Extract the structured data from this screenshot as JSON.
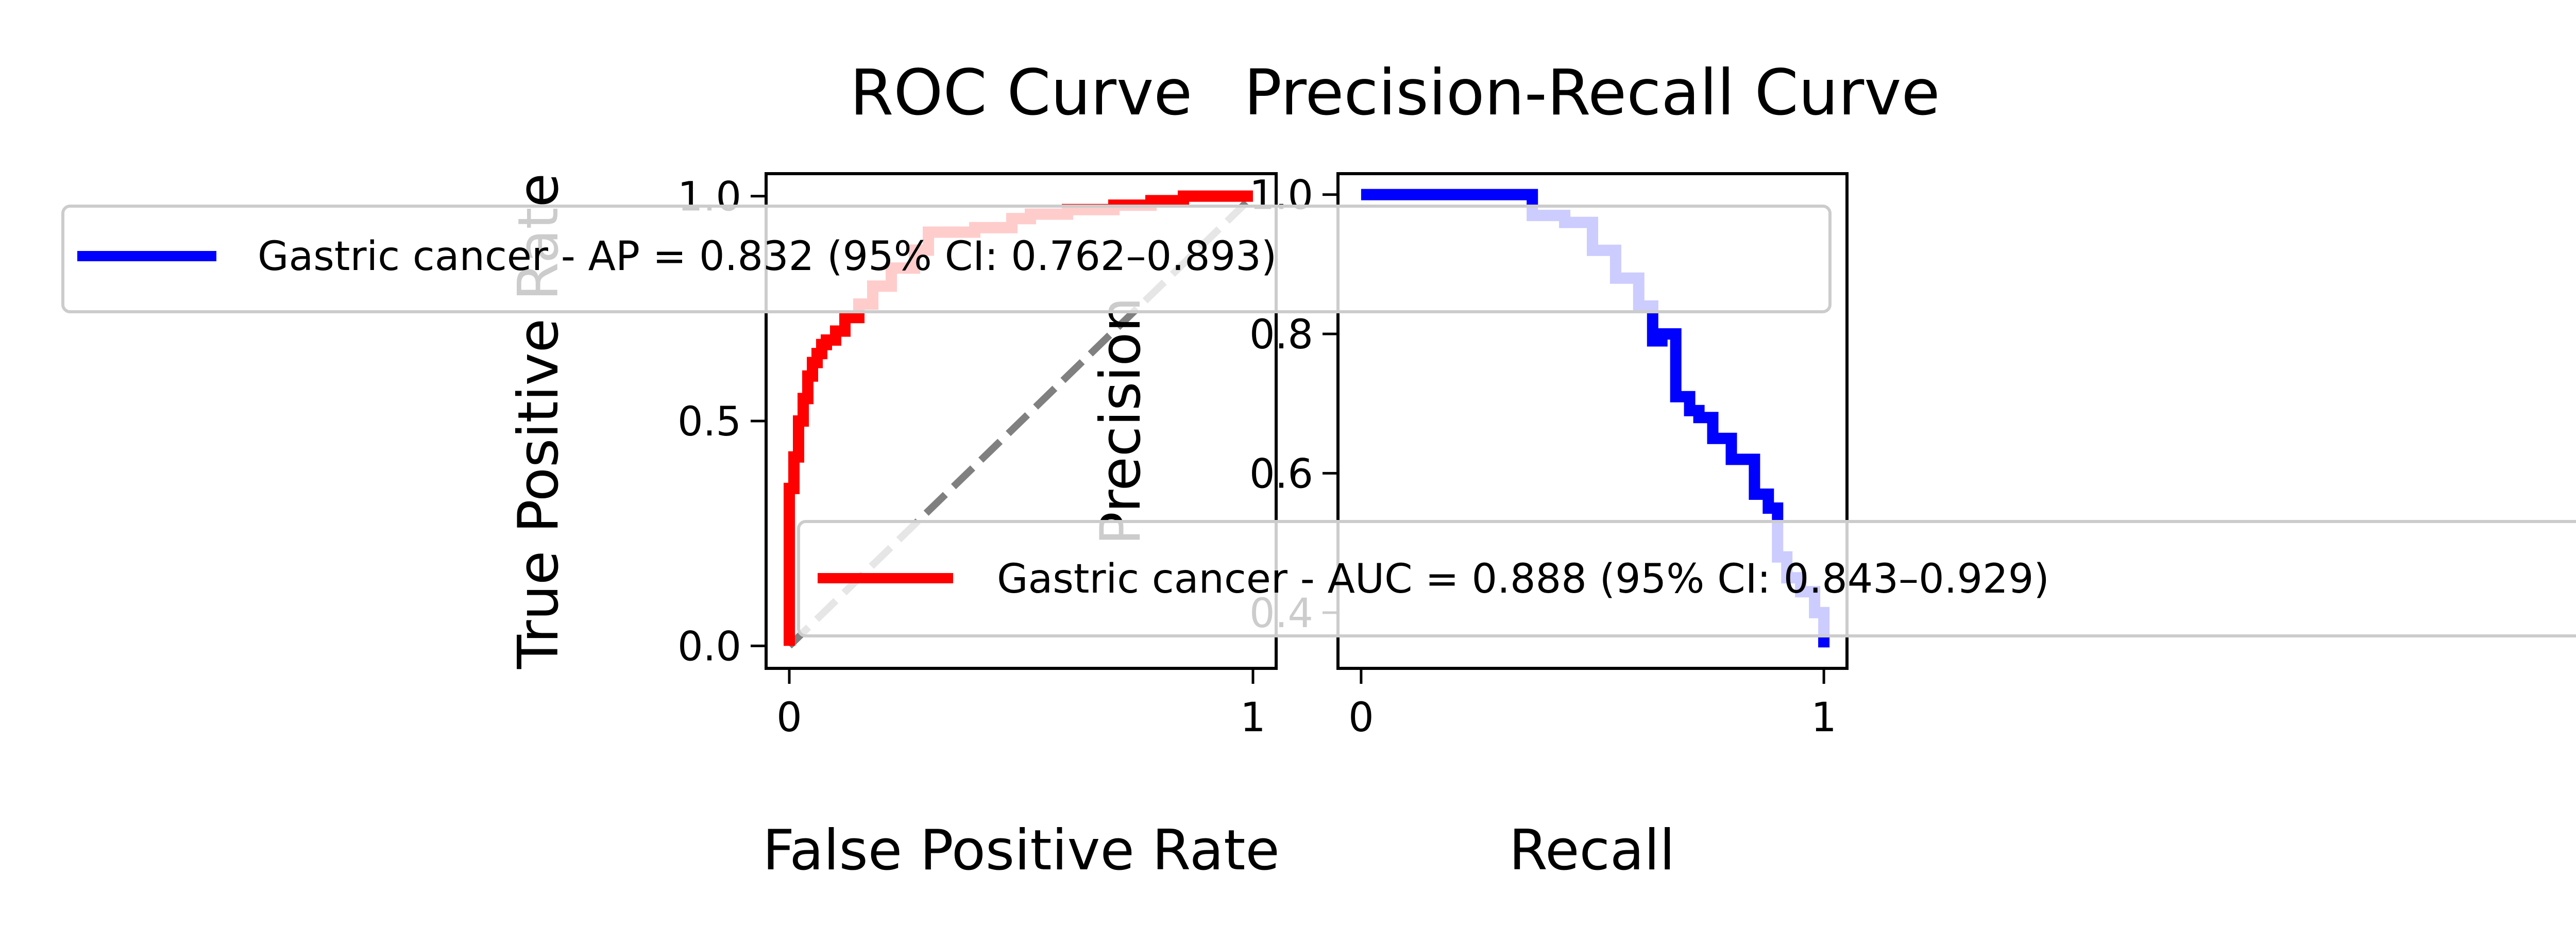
{
  "chart_data": [
    {
      "type": "line",
      "title": "ROC Curve",
      "xlabel": "False Positive Rate",
      "ylabel": "True Positive Rate",
      "xlim": [
        -0.05,
        1.05
      ],
      "ylim": [
        -0.05,
        1.05
      ],
      "xticks": [
        "0",
        "1"
      ],
      "yticks": [
        "0.0",
        "0.5",
        "1.0"
      ],
      "grid": false,
      "legend_position": "lower-right",
      "series": [
        {
          "name": "Gastric cancer - AUC = 0.888 (95% CI: 0.843–0.929)",
          "color": "#ff0000",
          "x": [
            0.0,
            0.0,
            0.01,
            0.01,
            0.02,
            0.02,
            0.03,
            0.03,
            0.04,
            0.04,
            0.05,
            0.05,
            0.06,
            0.06,
            0.07,
            0.07,
            0.08,
            0.08,
            0.1,
            0.1,
            0.12,
            0.12,
            0.15,
            0.15,
            0.18,
            0.18,
            0.22,
            0.22,
            0.27,
            0.27,
            0.3,
            0.3,
            0.4,
            0.4,
            0.48,
            0.48,
            0.52,
            0.52,
            0.6,
            0.6,
            0.7,
            0.7,
            0.78,
            0.78,
            0.85,
            0.85,
            1.0
          ],
          "y": [
            0.0,
            0.35,
            0.35,
            0.42,
            0.42,
            0.5,
            0.5,
            0.55,
            0.55,
            0.6,
            0.6,
            0.63,
            0.63,
            0.65,
            0.65,
            0.67,
            0.67,
            0.68,
            0.68,
            0.7,
            0.7,
            0.73,
            0.73,
            0.76,
            0.76,
            0.8,
            0.8,
            0.84,
            0.84,
            0.88,
            0.88,
            0.92,
            0.92,
            0.93,
            0.93,
            0.95,
            0.95,
            0.96,
            0.96,
            0.97,
            0.97,
            0.98,
            0.98,
            0.99,
            0.99,
            1.0,
            1.0
          ]
        },
        {
          "name": "",
          "color": "#808080",
          "style": "dashed",
          "x": [
            0,
            1
          ],
          "y": [
            0,
            1
          ]
        }
      ]
    },
    {
      "type": "line",
      "title": "Precision-Recall Curve",
      "xlabel": "Recall",
      "ylabel": "Precision",
      "xlim": [
        -0.05,
        1.05
      ],
      "ylim": [
        0.32,
        1.03
      ],
      "xticks": [
        "0",
        "1"
      ],
      "yticks": [
        "0.4",
        "0.6",
        "0.8",
        "1.0"
      ],
      "grid": false,
      "legend_position": "top",
      "series": [
        {
          "name": "Gastric cancer - AP = 0.832 (95% CI: 0.762–0.893)",
          "color": "#0000ff",
          "x": [
            0.0,
            0.35,
            0.37,
            0.37,
            0.44,
            0.44,
            0.5,
            0.5,
            0.55,
            0.55,
            0.6,
            0.6,
            0.63,
            0.63,
            0.65,
            0.65,
            0.68,
            0.68,
            0.71,
            0.71,
            0.73,
            0.73,
            0.76,
            0.76,
            0.8,
            0.8,
            0.85,
            0.85,
            0.88,
            0.88,
            0.9,
            0.9,
            0.92,
            0.92,
            0.95,
            0.95,
            0.98,
            0.98,
            1.0,
            1.0
          ],
          "y": [
            1.0,
            1.0,
            1.0,
            0.97,
            0.97,
            0.96,
            0.96,
            0.92,
            0.92,
            0.88,
            0.88,
            0.84,
            0.84,
            0.79,
            0.79,
            0.8,
            0.8,
            0.71,
            0.71,
            0.69,
            0.69,
            0.68,
            0.68,
            0.65,
            0.65,
            0.62,
            0.62,
            0.57,
            0.57,
            0.55,
            0.55,
            0.48,
            0.48,
            0.45,
            0.45,
            0.43,
            0.43,
            0.4,
            0.4,
            0.35
          ]
        }
      ]
    }
  ]
}
